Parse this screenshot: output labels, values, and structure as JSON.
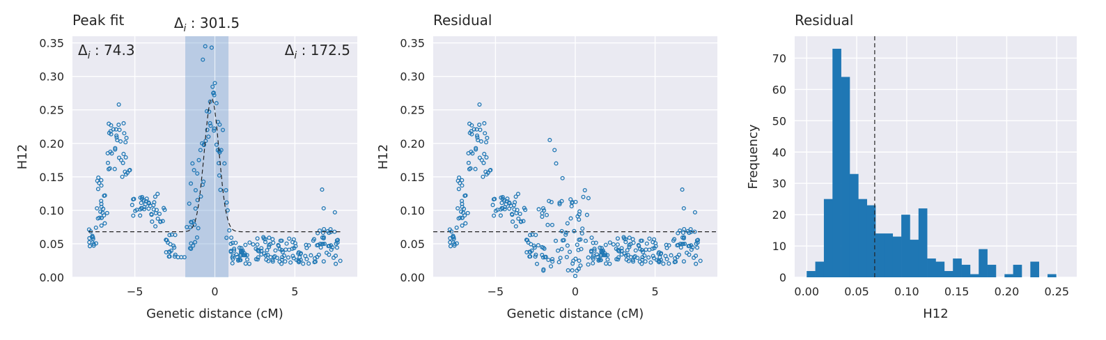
{
  "chart_data": [
    {
      "type": "scatter",
      "title": "Peak fit",
      "xlabel": "Genetic distance (cM)",
      "ylabel": "H12",
      "xlim": [
        -8.9,
        8.9
      ],
      "ylim": [
        0,
        0.36
      ],
      "xticks": [
        -5,
        0,
        5
      ],
      "yticks": [
        0.0,
        0.05,
        0.1,
        0.15,
        0.2,
        0.25,
        0.3,
        0.35
      ],
      "grid": true,
      "annotations": {
        "left": "74.3",
        "center": "301.5",
        "right": "172.5",
        "symbol": "Δ",
        "subscript": "i",
        "separator": " : "
      },
      "highlight_span": [
        -1.85,
        0.85
      ],
      "highlight_center_line": 0.0,
      "baseline": 0.068,
      "fit_peak": {
        "center": -0.2,
        "height": 0.267,
        "width": 0.65
      },
      "series_color": "#1f77b4"
    },
    {
      "type": "scatter",
      "title": "Residual",
      "xlabel": "Genetic distance (cM)",
      "ylabel": "H12",
      "xlim": [
        -8.9,
        8.9
      ],
      "ylim": [
        0,
        0.36
      ],
      "xticks": [
        -5,
        0,
        5
      ],
      "yticks": [
        0.0,
        0.05,
        0.1,
        0.15,
        0.2,
        0.25,
        0.3,
        0.35
      ],
      "grid": true,
      "baseline": 0.068,
      "series_color": "#1f77b4"
    },
    {
      "type": "bar",
      "title": "Residual",
      "xlabel": "H12",
      "ylabel": "Frequency",
      "xlim": [
        -0.012,
        0.27
      ],
      "ylim": [
        0,
        77
      ],
      "xticks": [
        0.0,
        0.05,
        0.1,
        0.15,
        0.2,
        0.25
      ],
      "yticks": [
        0,
        10,
        20,
        30,
        40,
        50,
        60,
        70
      ],
      "grid": true,
      "bin_width": 0.0086,
      "bin_start": 0.0,
      "values": [
        2,
        5,
        25,
        73,
        64,
        33,
        25,
        23,
        14,
        14,
        13,
        20,
        12,
        22,
        6,
        5,
        2,
        6,
        4,
        1,
        9,
        4,
        0,
        1,
        4,
        0,
        5,
        0,
        1
      ],
      "vline": 0.068,
      "series_color": "#1f77b4"
    }
  ]
}
